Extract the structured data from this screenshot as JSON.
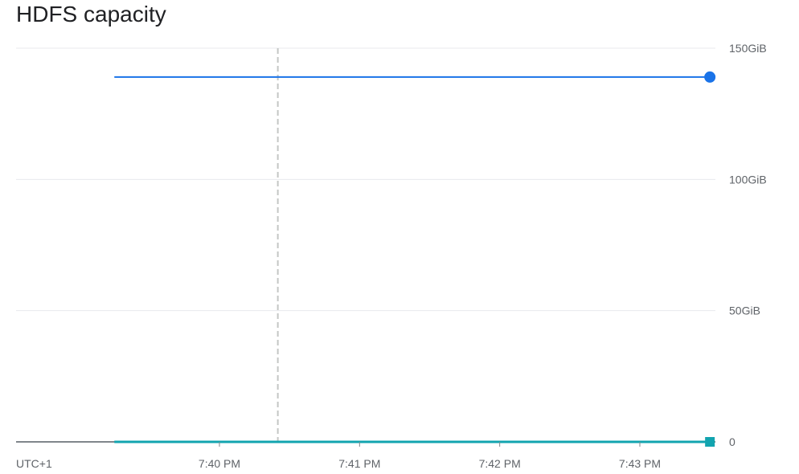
{
  "chart_data": {
    "type": "line",
    "title": "HDFS capacity",
    "timezone_label": "UTC+1",
    "x_ticks": [
      "7:40 PM",
      "7:41 PM",
      "7:42 PM",
      "7:43 PM"
    ],
    "y_ticks": [
      "150GiB",
      "100GiB",
      "50GiB",
      "0"
    ],
    "y_tick_values": [
      150,
      100,
      50,
      0
    ],
    "ylim": [
      0,
      150
    ],
    "y_unit": "GiB",
    "x_range": [
      "7:39:15 PM",
      "7:43:30 PM"
    ],
    "cursor_time": "7:40:25 PM",
    "grid": true,
    "series": [
      {
        "color": "#1a73e8",
        "marker": "circle",
        "x": [
          "7:39:15 PM",
          "7:43:30 PM"
        ],
        "values": [
          139,
          139
        ]
      },
      {
        "color": "#12a4af",
        "marker": "square",
        "x": [
          "7:39:15 PM",
          "7:43:30 PM"
        ],
        "values": [
          0,
          0
        ]
      }
    ]
  }
}
